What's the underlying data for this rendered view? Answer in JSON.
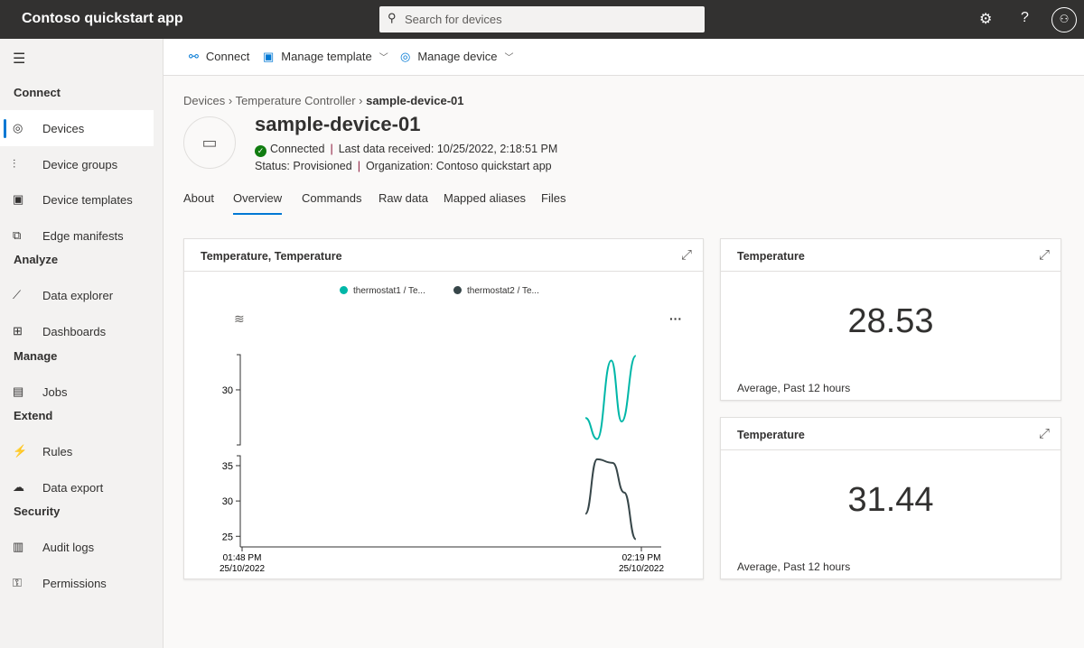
{
  "topbar": {
    "app_title": "Contoso quickstart app",
    "search_placeholder": "Search for devices",
    "avatar_icon": "person-badge-icon"
  },
  "sidebar": {
    "sections": [
      {
        "label": "Connect",
        "items": [
          {
            "label": "Devices",
            "icon": "devices-icon",
            "active": true
          },
          {
            "label": "Device groups",
            "icon": "device-groups-icon"
          },
          {
            "label": "Device templates",
            "icon": "device-templates-icon"
          },
          {
            "label": "Edge manifests",
            "icon": "edge-manifests-icon"
          }
        ]
      },
      {
        "label": "Analyze",
        "items": [
          {
            "label": "Data explorer",
            "icon": "data-explorer-icon"
          },
          {
            "label": "Dashboards",
            "icon": "dashboards-icon"
          }
        ]
      },
      {
        "label": "Manage",
        "items": [
          {
            "label": "Jobs",
            "icon": "jobs-icon"
          }
        ]
      },
      {
        "label": "Extend",
        "items": [
          {
            "label": "Rules",
            "icon": "rules-icon"
          },
          {
            "label": "Data export",
            "icon": "data-export-icon"
          }
        ]
      },
      {
        "label": "Security",
        "items": [
          {
            "label": "Audit logs",
            "icon": "audit-logs-icon"
          },
          {
            "label": "Permissions",
            "icon": "permissions-icon"
          }
        ]
      }
    ]
  },
  "commands": {
    "connect": "Connect",
    "manage_template": "Manage template",
    "manage_device": "Manage device"
  },
  "breadcrumb": [
    "Devices",
    "Temperature Controller",
    "sample-device-01"
  ],
  "device": {
    "name": "sample-device-01",
    "connection": "Connected",
    "last_data": "Last data received: 10/25/2022, 2:18:51 PM",
    "status": "Status: Provisioned",
    "organization": "Organization: Contoso quickstart app"
  },
  "tabs": [
    "About",
    "Overview",
    "Commands",
    "Raw data",
    "Mapped aliases",
    "Files"
  ],
  "active_tab": "Overview",
  "tiles": [
    {
      "title": "Temperature",
      "value": "28.53",
      "footer": "Average, Past 12 hours"
    },
    {
      "title": "Temperature",
      "value": "31.44",
      "footer": "Average, Past 12 hours"
    }
  ],
  "chart_card": {
    "title": "Temperature, Temperature"
  },
  "chart_data": {
    "type": "line",
    "title": "Temperature, Temperature",
    "legend_placement": "top",
    "grid": false,
    "x_ticks": [
      {
        "time": "01:48 PM",
        "date": "25/10/2022"
      },
      {
        "time": "02:19 PM",
        "date": "25/10/2022"
      }
    ],
    "xlim": [
      "13:48",
      "14:19"
    ],
    "series": [
      {
        "name": "thermostat1 / Te...",
        "color": "#00b7a8",
        "ylim": [
          25.3,
          33
        ],
        "y_ticks": [
          30
        ],
        "x": [
          "14:14:36",
          "14:15:30",
          "14:16:36",
          "14:17:24",
          "14:18:30"
        ],
        "values": [
          27.6,
          25.8,
          32.5,
          27.3,
          32.9
        ]
      },
      {
        "name": "thermostat2 / Te...",
        "color": "#374649",
        "ylim": [
          23.5,
          36.4
        ],
        "y_ticks": [
          25,
          30,
          35
        ],
        "x": [
          "14:14:36",
          "14:15:30",
          "14:16:42",
          "14:17:36",
          "14:18:30"
        ],
        "values": [
          28.2,
          35.9,
          35.4,
          31.2,
          24.6
        ]
      }
    ]
  }
}
